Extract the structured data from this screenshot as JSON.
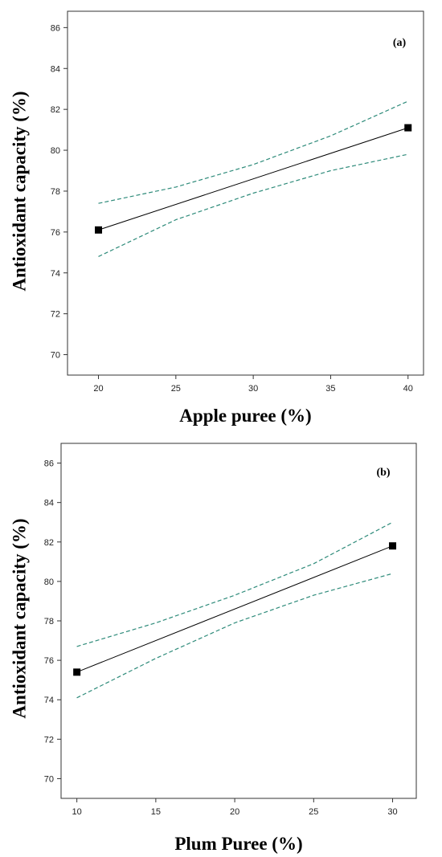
{
  "chart_data": [
    {
      "type": "line",
      "panel_label": "(a)",
      "xlabel": "Apple puree (%)",
      "ylabel": "Antioxidant capacity (%)",
      "xlim": [
        18,
        41
      ],
      "ylim": [
        69,
        86.8
      ],
      "xticks": [
        20,
        25,
        30,
        35,
        40
      ],
      "yticks": [
        70,
        72,
        74,
        76,
        78,
        80,
        82,
        84,
        86
      ],
      "grid": false,
      "series": [
        {
          "role": "fit",
          "style": "solid",
          "color": "#000000",
          "x": [
            20,
            40
          ],
          "y": [
            76.1,
            81.1
          ]
        },
        {
          "role": "ci-upper",
          "style": "dashed",
          "color": "#2e8b7a",
          "x": [
            20,
            25,
            30,
            35,
            40
          ],
          "y": [
            77.4,
            78.2,
            79.3,
            80.7,
            82.4
          ]
        },
        {
          "role": "ci-lower",
          "style": "dashed",
          "color": "#2e8b7a",
          "x": [
            20,
            25,
            30,
            35,
            40
          ],
          "y": [
            74.8,
            76.6,
            77.9,
            79.0,
            79.8
          ]
        }
      ],
      "points": {
        "x": [
          20,
          40
        ],
        "y": [
          76.1,
          81.1
        ],
        "marker": "square"
      }
    },
    {
      "type": "line",
      "panel_label": "(b)",
      "xlabel": "Plum Puree (%)",
      "ylabel": "Antioxidant capacity (%)",
      "xlim": [
        9,
        31.5
      ],
      "ylim": [
        69,
        87
      ],
      "xticks": [
        10,
        15,
        20,
        25,
        30
      ],
      "yticks": [
        70,
        72,
        74,
        76,
        78,
        80,
        82,
        84,
        86
      ],
      "grid": false,
      "series": [
        {
          "role": "fit",
          "style": "solid",
          "color": "#000000",
          "x": [
            10,
            30
          ],
          "y": [
            75.4,
            81.8
          ]
        },
        {
          "role": "ci-upper",
          "style": "dashed",
          "color": "#2e8b7a",
          "x": [
            10,
            15,
            20,
            25,
            30
          ],
          "y": [
            76.7,
            77.9,
            79.3,
            80.9,
            83.0
          ]
        },
        {
          "role": "ci-lower",
          "style": "dashed",
          "color": "#2e8b7a",
          "x": [
            10,
            15,
            20,
            25,
            30
          ],
          "y": [
            74.1,
            76.1,
            77.9,
            79.3,
            80.4
          ]
        }
      ],
      "points": {
        "x": [
          10,
          30
        ],
        "y": [
          75.4,
          81.8
        ],
        "marker": "square"
      }
    }
  ]
}
